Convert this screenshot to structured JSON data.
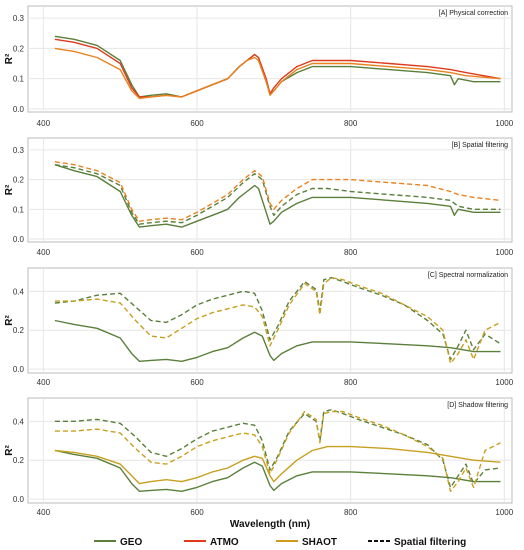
{
  "figure": {
    "xlabel": "Wavelength (nm)",
    "ylabel": "R²"
  },
  "legend": {
    "items": [
      {
        "label": "GEO",
        "color": "#5a7f3a",
        "dashed": false
      },
      {
        "label": "ATMO",
        "color": "#e03a1e",
        "dashed": false
      },
      {
        "label": "SHAOT",
        "color": "#d09a1a",
        "dashed": false
      },
      {
        "label": "Spatial filtering",
        "color": "#111111",
        "dashed": true
      }
    ]
  },
  "chart_data": [
    {
      "type": "line",
      "title": "[A] Physical correction",
      "xlim": [
        380,
        1010
      ],
      "ylim": [
        -0.01,
        0.34
      ],
      "xticks": [
        400,
        600,
        800,
        1000
      ],
      "yticks": [
        0.0,
        0.1,
        0.2,
        0.3
      ],
      "ytick_labels": [
        "0.0",
        "0.1",
        "0.2",
        "0.3"
      ],
      "grid": true,
      "series": [
        {
          "name": "GEO",
          "color": "#5a7f3a",
          "dashed": false,
          "x": [
            415,
            440,
            470,
            500,
            515,
            525,
            540,
            560,
            580,
            600,
            620,
            630,
            640,
            655,
            665,
            675,
            680,
            690,
            695,
            700,
            710,
            730,
            750,
            770,
            800,
            850,
            900,
            930,
            935,
            940,
            960,
            995
          ],
          "y": [
            0.24,
            0.23,
            0.21,
            0.16,
            0.08,
            0.04,
            0.045,
            0.05,
            0.04,
            0.06,
            0.08,
            0.09,
            0.1,
            0.14,
            0.16,
            0.18,
            0.17,
            0.09,
            0.05,
            0.06,
            0.09,
            0.12,
            0.14,
            0.14,
            0.14,
            0.13,
            0.12,
            0.11,
            0.08,
            0.1,
            0.09,
            0.09
          ]
        },
        {
          "name": "ATMO",
          "color": "#e03a1e",
          "dashed": false,
          "x": [
            415,
            440,
            470,
            500,
            515,
            525,
            540,
            560,
            580,
            600,
            620,
            630,
            640,
            655,
            665,
            675,
            680,
            690,
            695,
            700,
            710,
            730,
            750,
            770,
            800,
            850,
            900,
            930,
            950,
            995
          ],
          "y": [
            0.23,
            0.22,
            0.2,
            0.15,
            0.07,
            0.04,
            0.04,
            0.045,
            0.04,
            0.06,
            0.08,
            0.09,
            0.1,
            0.14,
            0.16,
            0.18,
            0.17,
            0.1,
            0.05,
            0.07,
            0.1,
            0.14,
            0.16,
            0.16,
            0.16,
            0.15,
            0.14,
            0.13,
            0.12,
            0.1
          ]
        },
        {
          "name": "SHAOT",
          "color": "#e8821e",
          "dashed": false,
          "x": [
            415,
            440,
            470,
            500,
            515,
            525,
            540,
            560,
            580,
            600,
            620,
            630,
            640,
            655,
            665,
            675,
            680,
            690,
            695,
            700,
            710,
            730,
            750,
            770,
            800,
            850,
            900,
            930,
            950,
            995
          ],
          "y": [
            0.2,
            0.19,
            0.17,
            0.13,
            0.06,
            0.035,
            0.04,
            0.045,
            0.04,
            0.06,
            0.08,
            0.09,
            0.1,
            0.14,
            0.16,
            0.17,
            0.16,
            0.09,
            0.045,
            0.06,
            0.09,
            0.13,
            0.15,
            0.15,
            0.15,
            0.14,
            0.13,
            0.12,
            0.11,
            0.1
          ]
        }
      ]
    },
    {
      "type": "line",
      "title": "[B] Spatial filtering",
      "xlim": [
        380,
        1010
      ],
      "ylim": [
        -0.01,
        0.34
      ],
      "xticks": [
        400,
        600,
        800,
        1000
      ],
      "yticks": [
        0.0,
        0.1,
        0.2,
        0.3
      ],
      "ytick_labels": [
        "0.0",
        "0.1",
        "0.2",
        "0.3"
      ],
      "grid": true,
      "series": [
        {
          "name": "GEO",
          "color": "#5a7f3a",
          "dashed": false,
          "x": [
            415,
            440,
            470,
            500,
            515,
            525,
            540,
            560,
            580,
            600,
            620,
            630,
            640,
            655,
            665,
            675,
            680,
            690,
            695,
            700,
            710,
            730,
            750,
            770,
            800,
            850,
            900,
            930,
            935,
            940,
            960,
            995
          ],
          "y": [
            0.25,
            0.23,
            0.21,
            0.16,
            0.08,
            0.04,
            0.045,
            0.05,
            0.04,
            0.06,
            0.08,
            0.09,
            0.1,
            0.14,
            0.16,
            0.18,
            0.17,
            0.09,
            0.05,
            0.06,
            0.09,
            0.12,
            0.14,
            0.14,
            0.14,
            0.13,
            0.12,
            0.11,
            0.08,
            0.1,
            0.09,
            0.09
          ]
        },
        {
          "name": "GEO spatial",
          "color": "#5a7f3a",
          "dashed": true,
          "x": [
            415,
            440,
            470,
            500,
            515,
            525,
            540,
            560,
            580,
            600,
            620,
            640,
            660,
            675,
            685,
            695,
            700,
            710,
            730,
            750,
            770,
            800,
            850,
            900,
            930,
            940,
            960,
            995
          ],
          "y": [
            0.25,
            0.24,
            0.22,
            0.18,
            0.09,
            0.05,
            0.055,
            0.06,
            0.055,
            0.08,
            0.11,
            0.14,
            0.19,
            0.22,
            0.2,
            0.11,
            0.08,
            0.11,
            0.15,
            0.17,
            0.17,
            0.16,
            0.15,
            0.14,
            0.13,
            0.11,
            0.1,
            0.1
          ]
        },
        {
          "name": "ATMO spatial",
          "color": "#e8821e",
          "dashed": true,
          "x": [
            415,
            440,
            470,
            500,
            515,
            525,
            540,
            560,
            580,
            600,
            620,
            640,
            660,
            675,
            685,
            695,
            700,
            710,
            730,
            750,
            770,
            800,
            850,
            900,
            930,
            940,
            960,
            995
          ],
          "y": [
            0.26,
            0.25,
            0.23,
            0.19,
            0.1,
            0.06,
            0.065,
            0.07,
            0.065,
            0.09,
            0.12,
            0.15,
            0.2,
            0.23,
            0.21,
            0.12,
            0.1,
            0.13,
            0.17,
            0.2,
            0.2,
            0.2,
            0.19,
            0.18,
            0.16,
            0.15,
            0.14,
            0.13
          ]
        }
      ]
    },
    {
      "type": "line",
      "title": "[C] Spectral normalization",
      "xlim": [
        380,
        1010
      ],
      "ylim": [
        -0.02,
        0.52
      ],
      "xticks": [
        400,
        600,
        800,
        1000
      ],
      "yticks": [
        0.0,
        0.2,
        0.4
      ],
      "ytick_labels": [
        "0.0",
        "0.2",
        "0.4"
      ],
      "grid": true,
      "series": [
        {
          "name": "GEO",
          "color": "#5a7f3a",
          "dashed": false,
          "x": [
            415,
            440,
            470,
            500,
            515,
            525,
            540,
            560,
            580,
            600,
            620,
            640,
            660,
            675,
            685,
            695,
            700,
            710,
            730,
            750,
            770,
            800,
            850,
            900,
            930,
            960,
            995
          ],
          "y": [
            0.25,
            0.23,
            0.21,
            0.16,
            0.08,
            0.04,
            0.045,
            0.05,
            0.04,
            0.06,
            0.09,
            0.11,
            0.16,
            0.19,
            0.17,
            0.07,
            0.045,
            0.08,
            0.12,
            0.14,
            0.14,
            0.14,
            0.13,
            0.12,
            0.11,
            0.09,
            0.09
          ]
        },
        {
          "name": "GEO spatial",
          "color": "#5a7f3a",
          "dashed": true,
          "x": [
            415,
            440,
            470,
            500,
            520,
            540,
            560,
            580,
            600,
            620,
            640,
            660,
            675,
            685,
            695,
            705,
            720,
            740,
            755,
            760,
            765,
            775,
            790,
            810,
            840,
            870,
            900,
            920,
            930,
            940,
            950,
            960,
            975,
            995
          ],
          "y": [
            0.34,
            0.35,
            0.38,
            0.39,
            0.32,
            0.25,
            0.24,
            0.28,
            0.33,
            0.36,
            0.38,
            0.4,
            0.39,
            0.3,
            0.15,
            0.22,
            0.35,
            0.45,
            0.41,
            0.3,
            0.46,
            0.47,
            0.45,
            0.42,
            0.38,
            0.33,
            0.25,
            0.18,
            0.05,
            0.12,
            0.2,
            0.1,
            0.18,
            0.13
          ]
        },
        {
          "name": "SHAOT spatial",
          "color": "#c8a020",
          "dashed": true,
          "x": [
            415,
            440,
            470,
            500,
            520,
            540,
            560,
            580,
            600,
            620,
            640,
            660,
            675,
            685,
            695,
            705,
            720,
            740,
            755,
            760,
            765,
            775,
            790,
            810,
            840,
            870,
            900,
            920,
            930,
            940,
            950,
            960,
            975,
            995
          ],
          "y": [
            0.35,
            0.35,
            0.36,
            0.34,
            0.25,
            0.17,
            0.16,
            0.21,
            0.26,
            0.29,
            0.31,
            0.33,
            0.32,
            0.27,
            0.12,
            0.2,
            0.33,
            0.44,
            0.4,
            0.28,
            0.44,
            0.47,
            0.46,
            0.43,
            0.39,
            0.33,
            0.27,
            0.2,
            0.03,
            0.08,
            0.15,
            0.05,
            0.2,
            0.24
          ]
        }
      ]
    },
    {
      "type": "line",
      "title": "[D] Shadow filtering",
      "xlim": [
        380,
        1010
      ],
      "ylim": [
        -0.02,
        0.52
      ],
      "xticks": [
        400,
        600,
        800,
        1000
      ],
      "yticks": [
        0.0,
        0.2,
        0.4
      ],
      "ytick_labels": [
        "0.0",
        "0.2",
        "0.4"
      ],
      "grid": true,
      "series": [
        {
          "name": "GEO",
          "color": "#5a7f3a",
          "dashed": false,
          "x": [
            415,
            440,
            470,
            500,
            515,
            525,
            540,
            560,
            580,
            600,
            620,
            640,
            660,
            675,
            685,
            695,
            700,
            710,
            730,
            750,
            770,
            800,
            850,
            900,
            930,
            960,
            995
          ],
          "y": [
            0.25,
            0.23,
            0.21,
            0.16,
            0.08,
            0.04,
            0.045,
            0.05,
            0.04,
            0.06,
            0.09,
            0.11,
            0.16,
            0.19,
            0.17,
            0.07,
            0.045,
            0.08,
            0.12,
            0.14,
            0.14,
            0.14,
            0.13,
            0.12,
            0.11,
            0.09,
            0.09
          ]
        },
        {
          "name": "SHAOT",
          "color": "#c8a020",
          "dashed": false,
          "x": [
            415,
            440,
            470,
            500,
            515,
            525,
            540,
            560,
            580,
            600,
            620,
            640,
            660,
            675,
            685,
            695,
            700,
            710,
            730,
            750,
            770,
            800,
            850,
            900,
            930,
            960,
            995
          ],
          "y": [
            0.25,
            0.24,
            0.22,
            0.18,
            0.12,
            0.08,
            0.09,
            0.1,
            0.09,
            0.11,
            0.14,
            0.16,
            0.2,
            0.22,
            0.21,
            0.12,
            0.09,
            0.13,
            0.2,
            0.25,
            0.27,
            0.27,
            0.26,
            0.24,
            0.22,
            0.2,
            0.19
          ]
        },
        {
          "name": "GEO spatial",
          "color": "#5a7f3a",
          "dashed": true,
          "x": [
            415,
            440,
            470,
            500,
            520,
            540,
            560,
            580,
            600,
            620,
            640,
            660,
            675,
            685,
            695,
            705,
            720,
            740,
            755,
            760,
            765,
            775,
            790,
            810,
            840,
            870,
            900,
            920,
            930,
            940,
            950,
            960,
            975,
            995
          ],
          "y": [
            0.4,
            0.4,
            0.41,
            0.39,
            0.32,
            0.24,
            0.22,
            0.26,
            0.31,
            0.35,
            0.37,
            0.39,
            0.38,
            0.3,
            0.15,
            0.22,
            0.35,
            0.44,
            0.4,
            0.3,
            0.45,
            0.46,
            0.44,
            0.41,
            0.37,
            0.33,
            0.28,
            0.2,
            0.06,
            0.12,
            0.18,
            0.08,
            0.15,
            0.16
          ]
        },
        {
          "name": "SHAOT spatial",
          "color": "#c8a020",
          "dashed": true,
          "x": [
            415,
            440,
            470,
            500,
            520,
            540,
            560,
            580,
            600,
            620,
            640,
            660,
            675,
            685,
            695,
            705,
            720,
            740,
            755,
            760,
            765,
            775,
            790,
            810,
            840,
            870,
            900,
            920,
            930,
            940,
            950,
            960,
            975,
            995
          ],
          "y": [
            0.35,
            0.35,
            0.36,
            0.34,
            0.26,
            0.19,
            0.18,
            0.22,
            0.27,
            0.3,
            0.32,
            0.34,
            0.33,
            0.27,
            0.13,
            0.21,
            0.34,
            0.45,
            0.41,
            0.29,
            0.44,
            0.45,
            0.45,
            0.42,
            0.38,
            0.33,
            0.27,
            0.21,
            0.04,
            0.09,
            0.16,
            0.06,
            0.25,
            0.29
          ]
        }
      ]
    }
  ]
}
